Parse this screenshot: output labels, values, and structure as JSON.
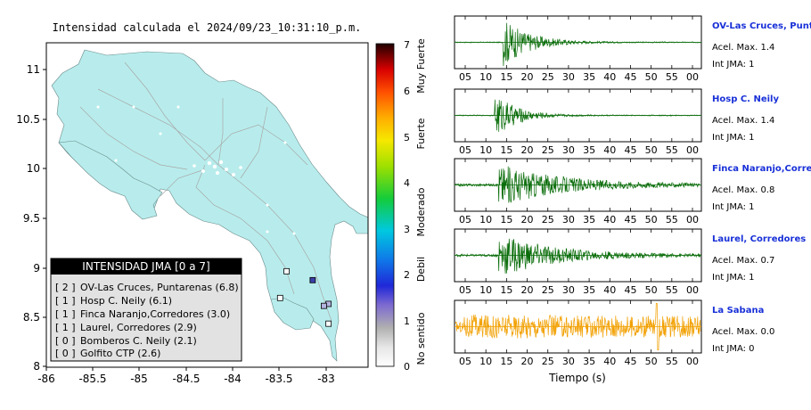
{
  "map": {
    "title": "Intensidad calculada el 2024/09/23_10:31:10_p.m.",
    "x_ticks": [
      "-86",
      "-85.5",
      "-85",
      "-84.5",
      "-84",
      "-83.5",
      "-83"
    ],
    "y_ticks": [
      "11",
      "10.5",
      "10",
      "9.5",
      "9",
      "8.5",
      "8"
    ],
    "legend": {
      "header": "INTENSIDAD JMA [0 a 7]",
      "rows": [
        {
          "code": "[ 2 ]",
          "label": "OV-Las Cruces, Puntarenas (6.8)"
        },
        {
          "code": "[ 1 ]",
          "label": "Hosp C. Neily (6.1)"
        },
        {
          "code": "[ 1 ]",
          "label": "Finca Naranjo,Corredores (3.0)"
        },
        {
          "code": "[ 1 ]",
          "label": "Laurel, Corredores (2.9)"
        },
        {
          "code": "[ 0 ]",
          "label": "Bomberos C. Neily (2.1)"
        },
        {
          "code": "[ 0 ]",
          "label": "Golfito CTP (2.6)"
        }
      ]
    },
    "stations": [
      {
        "lon": -83.14,
        "lat": 8.88,
        "intensity": 2
      },
      {
        "lon": -82.97,
        "lat": 8.64,
        "intensity": 1
      },
      {
        "lon": -83.02,
        "lat": 8.62,
        "intensity": 1
      },
      {
        "lon": -82.97,
        "lat": 8.44,
        "intensity": 0
      },
      {
        "lon": -83.42,
        "lat": 8.97,
        "intensity": 0
      },
      {
        "lon": -83.49,
        "lat": 8.7,
        "intensity": 0
      }
    ],
    "colors": {
      "land": "#b8ecec",
      "station_strong": "#3a40a8",
      "station_weak": "#b4b4e0"
    }
  },
  "colorbar": {
    "ticks": [
      "0",
      "1",
      "2",
      "3",
      "4",
      "5",
      "6",
      "7"
    ],
    "categories": [
      "No sentido",
      "Debil",
      "Moderado",
      "Fuerte",
      "Muy Fuerte"
    ]
  },
  "traces": {
    "x_ticks": [
      "05",
      "10",
      "15",
      "20",
      "25",
      "30",
      "35",
      "40",
      "45",
      "50",
      "55",
      "00"
    ],
    "xlabel": "Tiempo (s)",
    "items": [
      {
        "name": "OV-Las Cruces, Puntar",
        "accel": "Acel. Max. 1.4",
        "jma": "Int JMA: 1",
        "color": "#0a6d0a",
        "onset": 11.0,
        "amp": 1.0,
        "decay": 6.0,
        "noise": 0.02,
        "spike": null
      },
      {
        "name": "Hosp C. Neily",
        "accel": "Acel. Max. 1.4",
        "jma": "Int JMA: 1",
        "color": "#0a6d0a",
        "onset": 9.0,
        "amp": 0.95,
        "decay": 5.0,
        "noise": 0.02,
        "spike": null
      },
      {
        "name": "Finca Naranjo,Corredor",
        "accel": "Acel. Max. 0.8",
        "jma": "Int JMA: 1",
        "color": "#0a6d0a",
        "onset": 10.0,
        "amp": 0.85,
        "decay": 14.0,
        "noise": 0.05,
        "spike": null
      },
      {
        "name": "Laurel, Corredores",
        "accel": "Acel. Max. 0.7",
        "jma": "Int JMA: 1",
        "color": "#0a6d0a",
        "onset": 10.0,
        "amp": 0.9,
        "decay": 12.0,
        "noise": 0.05,
        "spike": null
      },
      {
        "name": "La Sabana",
        "accel": "Acel. Max. 0.0",
        "jma": "Int JMA: 0",
        "color": "#f2a000",
        "onset": 2.0,
        "amp": 0.28,
        "decay": 200.0,
        "noise": 0.22,
        "spike": 47.0
      }
    ]
  }
}
